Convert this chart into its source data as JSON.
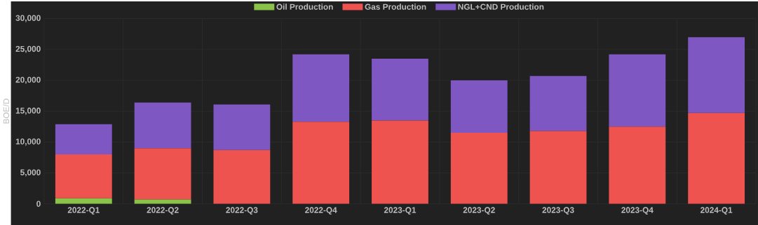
{
  "chart_data": {
    "type": "bar",
    "stacked": true,
    "ylabel": "BOE/D",
    "categories": [
      "2022-Q1",
      "2022-Q2",
      "2022-Q3",
      "2022-Q4",
      "2023-Q1",
      "2023-Q2",
      "2023-Q3",
      "2023-Q4",
      "2024-Q1"
    ],
    "series": [
      {
        "name": "Oil Production",
        "color": "#8bc34a",
        "values": [
          900,
          700,
          0,
          0,
          0,
          0,
          0,
          0,
          0
        ]
      },
      {
        "name": "Gas Production",
        "color": "#ef5350",
        "values": [
          7100,
          8300,
          8700,
          13300,
          13500,
          11500,
          11800,
          12500,
          14700
        ]
      },
      {
        "name": "NGL+CND Production",
        "color": "#7e57c2",
        "values": [
          4900,
          7400,
          7400,
          10900,
          10000,
          8500,
          8900,
          11700,
          12300
        ]
      }
    ],
    "ylim": [
      0,
      30000
    ],
    "yticks": [
      0,
      {
        "value": 5000,
        "label": "5,000"
      },
      {
        "value": 10000,
        "label": "10,000"
      },
      {
        "value": 15000,
        "label": "15,000"
      },
      {
        "value": 20000,
        "label": "20,000"
      },
      {
        "value": 25000,
        "label": "25,000"
      },
      {
        "value": 30000,
        "label": "30,000"
      }
    ],
    "grid": true,
    "legend": "top"
  }
}
